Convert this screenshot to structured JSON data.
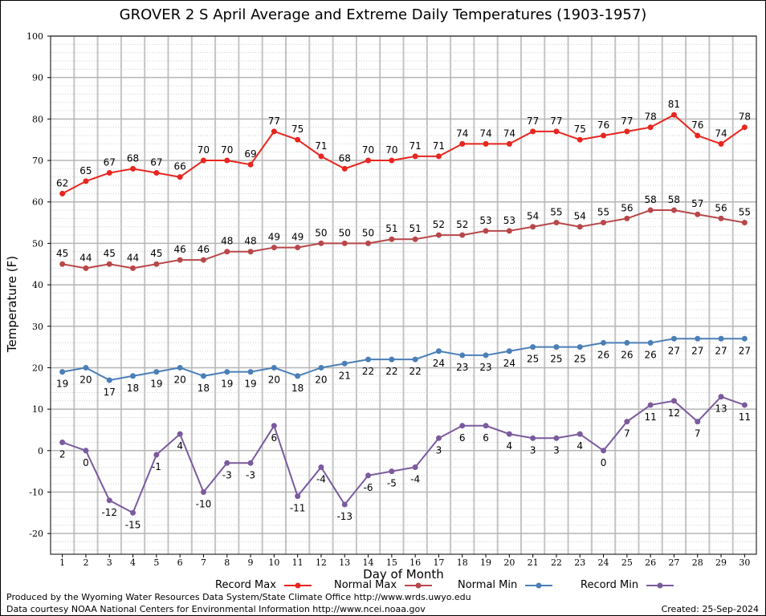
{
  "chart_data": {
    "type": "line",
    "title": "GROVER 2 S April Average and Extreme Daily Temperatures (1903-1957)",
    "xlabel": "Day of Month",
    "ylabel": "Temperature (F)",
    "ylim": [
      -25,
      100
    ],
    "xlim": [
      0.5,
      30.5
    ],
    "yticks": [
      -20,
      -10,
      0,
      10,
      20,
      30,
      40,
      50,
      60,
      70,
      80,
      90,
      100
    ],
    "x": [
      1,
      2,
      3,
      4,
      5,
      6,
      7,
      8,
      9,
      10,
      11,
      12,
      13,
      14,
      15,
      16,
      17,
      18,
      19,
      20,
      21,
      22,
      23,
      24,
      25,
      26,
      27,
      28,
      29,
      30
    ],
    "grid": true,
    "legend_position": "bottom",
    "series": [
      {
        "name": "Record Max",
        "color": "#e8251f",
        "label_pos": "above",
        "values": [
          62,
          65,
          67,
          68,
          67,
          66,
          70,
          70,
          69,
          77,
          75,
          71,
          68,
          70,
          70,
          71,
          71,
          74,
          74,
          74,
          77,
          77,
          75,
          76,
          77,
          78,
          81,
          76,
          74,
          78
        ]
      },
      {
        "name": "Normal Max",
        "color": "#b8474a",
        "label_pos": "above",
        "values": [
          45,
          44,
          45,
          44,
          45,
          46,
          46,
          48,
          48,
          49,
          49,
          50,
          50,
          50,
          51,
          51,
          52,
          52,
          53,
          53,
          54,
          55,
          54,
          55,
          56,
          58,
          58,
          57,
          56,
          55
        ]
      },
      {
        "name": "Normal Min",
        "color": "#4a7fb8",
        "label_pos": "below",
        "values": [
          19,
          20,
          17,
          18,
          19,
          20,
          18,
          19,
          19,
          20,
          18,
          20,
          21,
          22,
          22,
          22,
          24,
          23,
          23,
          24,
          25,
          25,
          25,
          26,
          26,
          26,
          27,
          27,
          27,
          27
        ]
      },
      {
        "name": "Record Min",
        "color": "#7b5a9e",
        "label_pos": "below",
        "values": [
          2,
          0,
          -12,
          -15,
          -1,
          4,
          -10,
          -3,
          -3,
          6,
          -11,
          -4,
          -13,
          -6,
          -5,
          -4,
          3,
          6,
          6,
          4,
          3,
          3,
          4,
          0,
          7,
          11,
          12,
          7,
          13,
          11
        ]
      }
    ]
  },
  "footer": {
    "line1": "Produced by the Wyoming Water Resources Data System/State Climate Office http://www.wrds.uwyo.edu",
    "line2": "Data courtesy NOAA National Centers for Environmental Information http://www.ncei.noaa.gov",
    "created": "Created:  25-Sep-2024"
  }
}
